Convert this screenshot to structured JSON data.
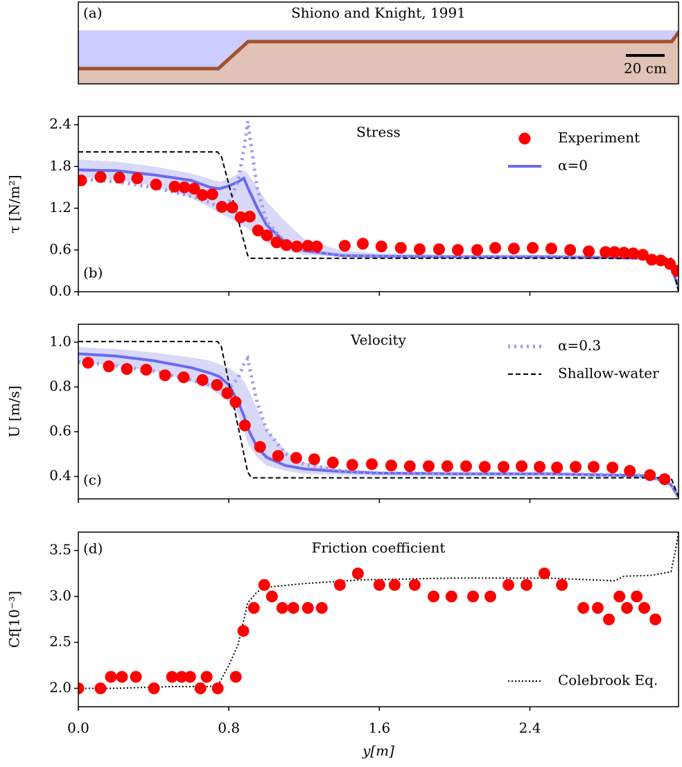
{
  "chart_data": [
    {
      "type": "diagram",
      "label": "(a)",
      "title": "Shiono and Knight, 1991",
      "scale_label": "20 cm"
    },
    {
      "type": "line",
      "title": "Stress",
      "label": "(b)",
      "label_corner": "lower left",
      "ylabel": "τ [N/m²]",
      "xlim": [
        0,
        3.19
      ],
      "ylim": [
        0,
        2.52
      ],
      "xticks": [
        0,
        0.8,
        1.6,
        2.4
      ],
      "yticks": [
        {
          "value": 0,
          "label": "0.0"
        },
        0.6,
        1.2,
        1.8,
        2.4
      ],
      "legend": "upper right",
      "series": [
        {
          "name": "Experiment",
          "color": "#ff0000",
          "style": "markers",
          "in_legend": true,
          "x": [
            0.015,
            0.118,
            0.218,
            0.313,
            0.413,
            0.512,
            0.564,
            0.616,
            0.66,
            0.712,
            0.763,
            0.818,
            0.863,
            0.911,
            0.955,
            1.003,
            1.054,
            1.106,
            1.161,
            1.22,
            1.268,
            1.416,
            1.512,
            1.611,
            1.714,
            1.814,
            1.917,
            2.017,
            2.12,
            2.216,
            2.315,
            2.415,
            2.514,
            2.614,
            2.713,
            2.802,
            2.85,
            2.9,
            2.949,
            3.0,
            3.048,
            3.096,
            3.144,
            3.181
          ],
          "values": [
            1.6,
            1.65,
            1.64,
            1.63,
            1.54,
            1.51,
            1.5,
            1.48,
            1.39,
            1.4,
            1.22,
            1.21,
            1.07,
            1.08,
            0.88,
            0.81,
            0.71,
            0.67,
            0.65,
            0.66,
            0.65,
            0.66,
            0.69,
            0.65,
            0.63,
            0.61,
            0.61,
            0.6,
            0.6,
            0.63,
            0.62,
            0.63,
            0.62,
            0.6,
            0.58,
            0.57,
            0.57,
            0.56,
            0.55,
            0.53,
            0.46,
            0.45,
            0.4,
            0.3
          ]
        },
        {
          "name": "α=0",
          "color": "#6a6aef",
          "style": "solid",
          "in_legend": true,
          "band_color": "#d8d8f8",
          "x": [
            0,
            0.2,
            0.4,
            0.6,
            0.7,
            0.75,
            0.8,
            0.85,
            0.88,
            0.9,
            0.95,
            1.0,
            1.1,
            1.2,
            1.4,
            1.6,
            2.0,
            2.5,
            3.0,
            3.1,
            3.15,
            3.19
          ],
          "values": [
            1.75,
            1.74,
            1.68,
            1.6,
            1.5,
            1.48,
            1.52,
            1.58,
            1.63,
            1.5,
            1.21,
            0.96,
            0.71,
            0.59,
            0.52,
            0.51,
            0.5,
            0.5,
            0.48,
            0.43,
            0.36,
            0.06
          ],
          "band_upper": [
            1.9,
            1.87,
            1.8,
            1.7,
            1.62,
            1.58,
            1.62,
            1.7,
            1.75,
            1.7,
            1.5,
            1.3,
            1.01,
            0.76,
            0.59,
            0.55,
            0.53,
            0.53,
            0.51,
            0.48,
            0.41,
            0.11
          ],
          "band_lower": [
            1.65,
            1.61,
            1.52,
            1.35,
            1.21,
            1.13,
            1.06,
            0.99,
            0.94,
            0.91,
            0.81,
            0.71,
            0.59,
            0.53,
            0.5,
            0.49,
            0.48,
            0.48,
            0.46,
            0.41,
            0.34,
            0.03
          ]
        },
        {
          "color": "#9a9af2",
          "style": "thick-dotted",
          "in_legend": false,
          "x": [
            0,
            0.2,
            0.4,
            0.6,
            0.7,
            0.75,
            0.8,
            0.85,
            0.88,
            0.9,
            0.95,
            1.0,
            1.1,
            1.2,
            1.4,
            1.6,
            2.0,
            2.5,
            3.0,
            3.1,
            3.15,
            3.19
          ],
          "values": [
            1.62,
            1.58,
            1.5,
            1.37,
            1.28,
            1.22,
            1.28,
            1.6,
            2.05,
            2.45,
            1.5,
            1.01,
            0.71,
            0.59,
            0.52,
            0.51,
            0.5,
            0.5,
            0.49,
            0.45,
            0.39,
            0.06
          ]
        },
        {
          "color": "#000000",
          "style": "dashed",
          "in_legend": false,
          "x": [
            0,
            0.74,
            0.76,
            0.9,
            0.92,
            3.15,
            3.19
          ],
          "values": [
            2.01,
            2.01,
            1.95,
            0.52,
            0.48,
            0.48,
            0.0
          ]
        }
      ]
    },
    {
      "type": "line",
      "title": "Velocity",
      "label": "(c)",
      "label_corner": "lower left",
      "ylabel": "U [m/s]",
      "xlim": [
        0,
        3.19
      ],
      "ylim": [
        0.3,
        1.08
      ],
      "xticks": [
        0,
        0.8,
        1.6,
        2.4
      ],
      "yticks": [
        0.4,
        0.6,
        0.8,
        {
          "value": 1.0,
          "label": "1.0"
        }
      ],
      "legend": "upper right",
      "series": [
        {
          "color": "#ff0000",
          "style": "markers",
          "in_legend": false,
          "x": [
            0.052,
            0.162,
            0.258,
            0.361,
            0.461,
            0.56,
            0.66,
            0.737,
            0.792,
            0.836,
            0.885,
            0.966,
            1.062,
            1.158,
            1.254,
            1.353,
            1.456,
            1.56,
            1.663,
            1.762,
            1.862,
            1.961,
            2.061,
            2.16,
            2.26,
            2.356,
            2.452,
            2.544,
            2.643,
            2.739,
            2.839,
            2.931,
            3.038,
            3.116
          ],
          "values": [
            0.908,
            0.892,
            0.88,
            0.877,
            0.852,
            0.843,
            0.831,
            0.809,
            0.772,
            0.732,
            0.628,
            0.532,
            0.492,
            0.483,
            0.477,
            0.462,
            0.452,
            0.455,
            0.449,
            0.446,
            0.446,
            0.446,
            0.446,
            0.443,
            0.443,
            0.446,
            0.443,
            0.44,
            0.443,
            0.443,
            0.44,
            0.425,
            0.406,
            0.388
          ]
        },
        {
          "color": "#6a6aef",
          "style": "solid",
          "in_legend": false,
          "band_color": "#d8d8f8",
          "x": [
            0,
            0.2,
            0.4,
            0.6,
            0.7,
            0.75,
            0.8,
            0.85,
            0.88,
            0.9,
            0.95,
            1.0,
            1.1,
            1.2,
            1.4,
            1.6,
            2.0,
            2.5,
            3.0,
            3.1,
            3.15,
            3.19
          ],
          "values": [
            0.948,
            0.938,
            0.917,
            0.886,
            0.862,
            0.846,
            0.809,
            0.732,
            0.671,
            0.615,
            0.532,
            0.486,
            0.449,
            0.434,
            0.422,
            0.415,
            0.412,
            0.412,
            0.403,
            0.385,
            0.363,
            0.308
          ],
          "band_upper": [
            0.978,
            0.969,
            0.954,
            0.932,
            0.917,
            0.902,
            0.886,
            0.855,
            0.825,
            0.794,
            0.702,
            0.609,
            0.517,
            0.462,
            0.431,
            0.422,
            0.418,
            0.418,
            0.409,
            0.394,
            0.372,
            0.317
          ],
          "band_lower": [
            0.911,
            0.895,
            0.871,
            0.825,
            0.794,
            0.763,
            0.732,
            0.671,
            0.609,
            0.548,
            0.486,
            0.449,
            0.425,
            0.412,
            0.406,
            0.403,
            0.403,
            0.403,
            0.394,
            0.375,
            0.354,
            0.302
          ]
        },
        {
          "name": "α=0.3",
          "color": "#9a9af2",
          "style": "thick-dotted",
          "in_legend": true,
          "x": [
            0,
            0.2,
            0.4,
            0.6,
            0.7,
            0.75,
            0.8,
            0.85,
            0.88,
            0.9,
            0.95,
            1.0,
            1.1,
            1.2,
            1.4,
            1.6,
            2.0,
            2.5,
            3.0,
            3.1,
            3.15,
            3.19
          ],
          "values": [
            0.911,
            0.895,
            0.871,
            0.831,
            0.809,
            0.794,
            0.794,
            0.84,
            0.902,
            0.926,
            0.732,
            0.609,
            0.502,
            0.455,
            0.425,
            0.415,
            0.412,
            0.412,
            0.406,
            0.388,
            0.366,
            0.308
          ]
        },
        {
          "name": "Shallow-water",
          "color": "#000000",
          "style": "dashed",
          "in_legend": true,
          "x": [
            0,
            0.74,
            0.76,
            0.9,
            0.92,
            3.15,
            3.19
          ],
          "values": [
            1.003,
            1.003,
            0.98,
            0.42,
            0.394,
            0.394,
            0.31
          ]
        }
      ]
    },
    {
      "type": "line",
      "title": "Friction coefficient",
      "label": "(d)",
      "label_corner": "upper left",
      "ylabel": "Cf[10⁻³]",
      "xlabel": "y[m]",
      "xlim": [
        0,
        3.19
      ],
      "ylim": [
        1.8,
        3.7
      ],
      "xticks": [
        {
          "value": 0,
          "label": "0.0"
        },
        0.8,
        1.6,
        2.4
      ],
      "yticks": [
        {
          "value": 2.0,
          "label": "2.0"
        },
        2.5,
        {
          "value": 3.0,
          "label": "3.0"
        },
        3.5
      ],
      "legend": "lower right",
      "series": [
        {
          "color": "#ff0000",
          "style": "markers",
          "in_legend": false,
          "x": [
            0,
            0.118,
            0.173,
            0.232,
            0.306,
            0.402,
            0.498,
            0.549,
            0.594,
            0.649,
            0.682,
            0.741,
            0.837,
            0.877,
            0.933,
            0.988,
            1.029,
            1.084,
            1.143,
            1.22,
            1.294,
            1.39,
            1.486,
            1.6,
            1.681,
            1.788,
            1.888,
            1.983,
            2.098,
            2.19,
            2.286,
            2.382,
            2.477,
            2.57,
            2.684,
            2.761,
            2.82,
            2.876,
            2.916,
            2.968,
            3.008,
            3.067
          ],
          "values": [
            2.0,
            2.0,
            2.125,
            2.125,
            2.125,
            2.0,
            2.125,
            2.125,
            2.125,
            2.0,
            2.125,
            2.0,
            2.125,
            2.625,
            2.875,
            3.125,
            3.0,
            2.875,
            2.875,
            2.875,
            2.875,
            3.125,
            3.25,
            3.125,
            3.125,
            3.125,
            3.0,
            3.0,
            3.0,
            3.0,
            3.125,
            3.125,
            3.25,
            3.125,
            2.875,
            2.875,
            2.75,
            3.0,
            2.875,
            3.0,
            2.875,
            2.75
          ]
        },
        {
          "name": "Colebrook Eq.",
          "color": "#000000",
          "style": "dotted",
          "in_legend": true,
          "x": [
            0,
            0.2,
            0.5,
            0.7,
            0.75,
            0.8,
            0.85,
            0.9,
            0.95,
            1.0,
            1.2,
            1.5,
            2.0,
            2.5,
            2.85,
            2.9,
            3.05,
            3.15,
            3.17,
            3.19
          ],
          "values": [
            2.0,
            2.0,
            2.02,
            2.02,
            2.06,
            2.25,
            2.48,
            2.93,
            3.05,
            3.1,
            3.14,
            3.18,
            3.2,
            3.2,
            3.17,
            3.22,
            3.23,
            3.27,
            3.46,
            3.69
          ]
        }
      ]
    }
  ]
}
